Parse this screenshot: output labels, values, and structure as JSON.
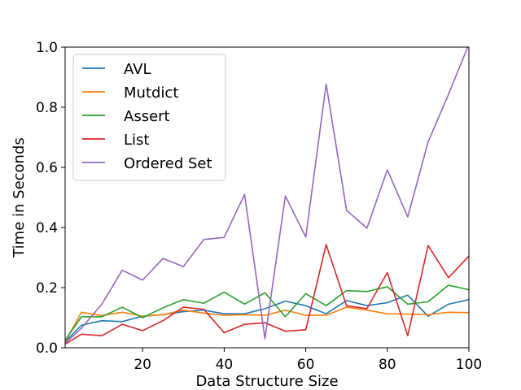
{
  "chart_data": {
    "type": "line",
    "title": "",
    "xlabel": "Data Structure Size",
    "ylabel": "Time in Seconds",
    "xlim": [
      1,
      100
    ],
    "ylim": [
      0,
      1.0
    ],
    "xticks": [
      20,
      40,
      60,
      80,
      100
    ],
    "yticks": [
      0.0,
      0.2,
      0.4,
      0.6,
      0.8,
      1.0
    ],
    "xtick_labels": [
      "20",
      "40",
      "60",
      "80",
      "100"
    ],
    "ytick_labels": [
      "0.0",
      "0.2",
      "0.4",
      "0.6",
      "0.8",
      "1.0"
    ],
    "grid": false,
    "legend_position": "upper-left",
    "x": [
      1,
      5,
      10,
      15,
      20,
      25,
      30,
      35,
      40,
      45,
      50,
      55,
      60,
      65,
      70,
      75,
      80,
      85,
      90,
      95,
      100
    ],
    "series": [
      {
        "name": "AVL",
        "color": "#1f77b4",
        "values": [
          0.02,
          0.075,
          0.09,
          0.087,
          0.105,
          0.11,
          0.12,
          0.125,
          0.113,
          0.113,
          0.13,
          0.155,
          0.14,
          0.113,
          0.157,
          0.14,
          0.15,
          0.175,
          0.105,
          0.145,
          0.16
        ]
      },
      {
        "name": "Mutdict",
        "color": "#ff7f0e",
        "values": [
          0.02,
          0.118,
          0.107,
          0.118,
          0.105,
          0.11,
          0.125,
          0.115,
          0.108,
          0.11,
          0.108,
          0.125,
          0.108,
          0.108,
          0.135,
          0.125,
          0.113,
          0.112,
          0.11,
          0.118,
          0.117
        ]
      },
      {
        "name": "Assert",
        "color": "#2ca02c",
        "values": [
          0.025,
          0.103,
          0.103,
          0.135,
          0.1,
          0.133,
          0.16,
          0.148,
          0.185,
          0.145,
          0.183,
          0.103,
          0.18,
          0.14,
          0.19,
          0.187,
          0.203,
          0.145,
          0.153,
          0.208,
          0.193
        ]
      },
      {
        "name": "List",
        "color": "#d62728",
        "values": [
          0.012,
          0.045,
          0.04,
          0.078,
          0.057,
          0.09,
          0.135,
          0.128,
          0.05,
          0.078,
          0.083,
          0.055,
          0.06,
          0.343,
          0.14,
          0.13,
          0.25,
          0.04,
          0.34,
          0.233,
          0.305
        ]
      },
      {
        "name": "Ordered Set",
        "color": "#9467bd",
        "values": [
          0.015,
          0.065,
          0.145,
          0.258,
          0.225,
          0.297,
          0.27,
          0.36,
          0.367,
          0.51,
          0.03,
          0.505,
          0.368,
          0.877,
          0.457,
          0.398,
          0.592,
          0.435,
          0.685,
          0.843,
          1.01
        ]
      }
    ]
  }
}
